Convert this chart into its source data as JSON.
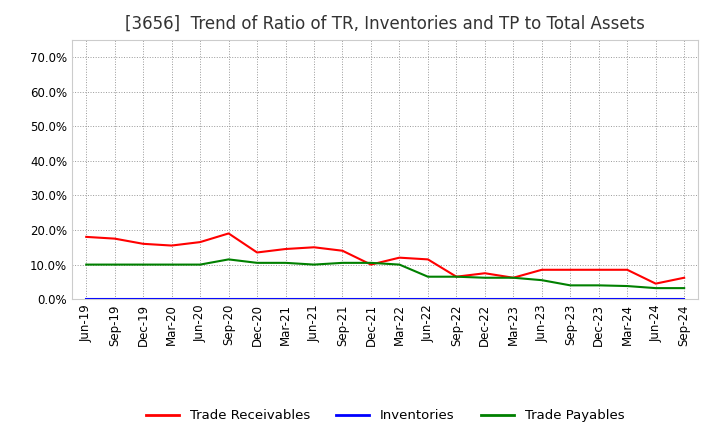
{
  "title": "[3656]  Trend of Ratio of TR, Inventories and TP to Total Assets",
  "labels": [
    "Jun-19",
    "Sep-19",
    "Dec-19",
    "Mar-20",
    "Jun-20",
    "Sep-20",
    "Dec-20",
    "Mar-21",
    "Jun-21",
    "Sep-21",
    "Dec-21",
    "Mar-22",
    "Jun-22",
    "Sep-22",
    "Dec-22",
    "Mar-23",
    "Jun-23",
    "Sep-23",
    "Dec-23",
    "Mar-24",
    "Jun-24",
    "Sep-24"
  ],
  "trade_receivables": [
    0.18,
    0.175,
    0.16,
    0.155,
    0.165,
    0.19,
    0.135,
    0.145,
    0.15,
    0.14,
    0.1,
    0.12,
    0.115,
    0.065,
    0.075,
    0.062,
    0.085,
    0.085,
    0.085,
    0.085,
    0.045,
    0.062
  ],
  "inventories": [
    0.001,
    0.001,
    0.001,
    0.001,
    0.001,
    0.001,
    0.001,
    0.001,
    0.001,
    0.001,
    0.001,
    0.001,
    0.001,
    0.001,
    0.001,
    0.001,
    0.001,
    0.001,
    0.001,
    0.001,
    0.001,
    0.001
  ],
  "trade_payables": [
    0.1,
    0.1,
    0.1,
    0.1,
    0.1,
    0.115,
    0.105,
    0.105,
    0.1,
    0.105,
    0.105,
    0.1,
    0.065,
    0.065,
    0.062,
    0.062,
    0.055,
    0.04,
    0.04,
    0.038,
    0.032,
    0.032
  ],
  "ylim": [
    0.0,
    0.75
  ],
  "yticks": [
    0.0,
    0.1,
    0.2,
    0.3,
    0.4,
    0.5,
    0.6,
    0.7
  ],
  "line_colors": {
    "trade_receivables": "#FF0000",
    "inventories": "#0000FF",
    "trade_payables": "#008000"
  },
  "legend_labels": [
    "Trade Receivables",
    "Inventories",
    "Trade Payables"
  ],
  "background_color": "#FFFFFF",
  "plot_bg_color": "#FFFFFF",
  "grid_color": "#999999",
  "title_fontsize": 12,
  "axis_fontsize": 8.5,
  "legend_fontsize": 9.5,
  "title_color": "#333333"
}
